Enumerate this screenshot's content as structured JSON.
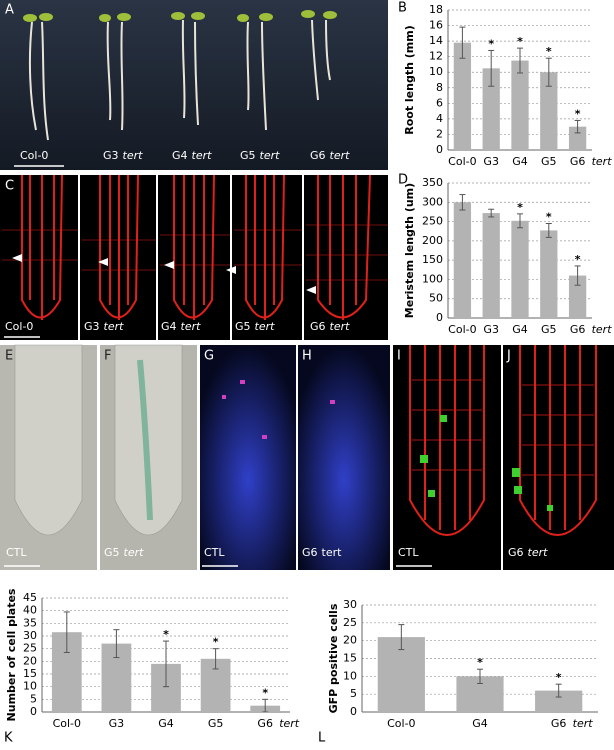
{
  "photo_panels": [
    {
      "letter": "A",
      "captions": [
        {
          "line": "Col-0"
        },
        {
          "line": "G3",
          "genotype": "tert"
        },
        {
          "line": "G4",
          "genotype": "tert"
        },
        {
          "line": "G5",
          "genotype": "tert"
        },
        {
          "line": "G6",
          "genotype": "tert"
        }
      ]
    },
    {
      "letter": "C",
      "captions": [
        {
          "line": "Col-0"
        },
        {
          "line": "G3",
          "genotype": "tert"
        },
        {
          "line": "G4",
          "genotype": "tert"
        },
        {
          "line": "G5",
          "genotype": "tert"
        },
        {
          "line": "G6",
          "genotype": "tert"
        }
      ]
    },
    {
      "letter": "E",
      "captions": [
        {
          "line": "CTL"
        }
      ]
    },
    {
      "letter": "F",
      "captions": [
        {
          "line": "G5",
          "genotype": "tert"
        }
      ]
    },
    {
      "letter": "G",
      "captions": [
        {
          "line": "CTL"
        }
      ]
    },
    {
      "letter": "H",
      "captions": [
        {
          "line": "G6",
          "genotype": "tert"
        }
      ]
    },
    {
      "letter": "I",
      "captions": [
        {
          "line": "CTL"
        }
      ]
    },
    {
      "letter": "J",
      "captions": [
        {
          "line": "G6",
          "genotype": "tert"
        }
      ]
    }
  ],
  "chart_data": [
    {
      "type": "bar",
      "panel": "B",
      "ylabel": "Root length (mm)",
      "categories": [
        "Col-0",
        "G3",
        "G4",
        "G5",
        "G6"
      ],
      "category_suffix": "tert",
      "values": [
        13.8,
        10.5,
        11.5,
        10,
        3
      ],
      "errors": [
        2,
        2.3,
        1.6,
        1.8,
        0.8
      ],
      "markers": [
        null,
        "*",
        "*",
        "*",
        "*"
      ],
      "color": "#b3b3b3",
      "ylim": [
        0,
        18
      ],
      "yticks": [
        0,
        2,
        4,
        6,
        8,
        10,
        12,
        14,
        16,
        18
      ],
      "grid": true
    },
    {
      "type": "bar",
      "panel": "D",
      "ylabel": "Meristem length (um)",
      "categories": [
        "Col-0",
        "G3",
        "G4",
        "G5",
        "G6"
      ],
      "category_suffix": "tert",
      "values": [
        300,
        272,
        252,
        227,
        110
      ],
      "errors": [
        20,
        10,
        18,
        18,
        25
      ],
      "markers": [
        null,
        null,
        "*",
        "*",
        "*"
      ],
      "color": "#b3b3b3",
      "ylim": [
        0,
        350
      ],
      "yticks": [
        0,
        50,
        100,
        150,
        200,
        250,
        300,
        350
      ],
      "grid": true
    },
    {
      "type": "bar",
      "panel": "K",
      "ylabel": "Number of cell plates",
      "categories": [
        "Col-0",
        "G3",
        "G4",
        "G5",
        "G6"
      ],
      "category_suffix": "tert",
      "values": [
        31.5,
        27,
        19,
        21,
        2.5
      ],
      "errors": [
        8,
        5.5,
        9,
        4,
        2.5
      ],
      "markers": [
        null,
        null,
        "*",
        "*",
        "*"
      ],
      "color": "#b3b3b3",
      "ylim": [
        0,
        45
      ],
      "yticks": [
        0,
        5,
        10,
        15,
        20,
        25,
        30,
        35,
        40,
        45
      ],
      "grid": true
    },
    {
      "type": "bar",
      "panel": "L",
      "ylabel": "GFP positive cells",
      "categories": [
        "Col-0",
        "G4",
        "G6"
      ],
      "category_suffix": "tert",
      "values": [
        21,
        10,
        6
      ],
      "errors": [
        3.5,
        2,
        1.8
      ],
      "markers": [
        null,
        "*",
        "*"
      ],
      "color": "#b3b3b3",
      "ylim": [
        0,
        30
      ],
      "yticks": [
        0,
        5,
        10,
        15,
        20,
        25,
        30
      ],
      "grid": true
    }
  ]
}
